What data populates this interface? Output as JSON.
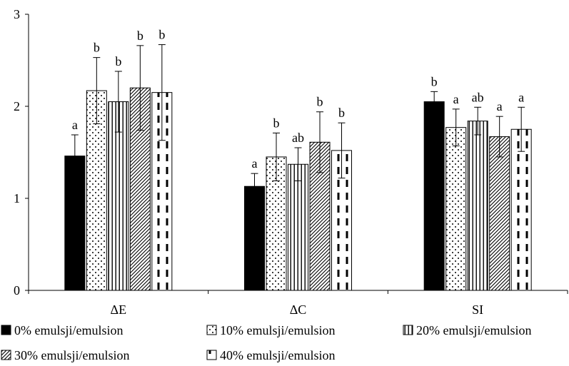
{
  "chart_data": {
    "type": "bar",
    "title": "",
    "xlabel": "",
    "ylabel": "",
    "ylim": [
      0,
      3
    ],
    "yticks": [
      0,
      1,
      2,
      3
    ],
    "grid": false,
    "legend_position": "bottom",
    "categories": [
      "ΔE",
      "ΔC",
      "SI"
    ],
    "series": [
      {
        "name": "0% emulsji/emulsion",
        "pattern": "solid",
        "values": [
          1.46,
          1.13,
          2.05
        ],
        "errors": [
          0.23,
          0.14,
          0.11
        ],
        "labels": [
          "a",
          "a",
          "b"
        ]
      },
      {
        "name": "10% emulsji/emulsion",
        "pattern": "dots",
        "values": [
          2.17,
          1.45,
          1.77
        ],
        "errors": [
          0.36,
          0.26,
          0.2
        ],
        "labels": [
          "b",
          "b",
          "a"
        ]
      },
      {
        "name": "20% emulsji/emulsion",
        "pattern": "vertical",
        "values": [
          2.05,
          1.37,
          1.84
        ],
        "errors": [
          0.33,
          0.18,
          0.15
        ],
        "labels": [
          "b",
          "ab",
          "ab"
        ]
      },
      {
        "name": "30% emulsji/emulsion",
        "pattern": "diagonal",
        "values": [
          2.2,
          1.61,
          1.67
        ],
        "errors": [
          0.46,
          0.33,
          0.22
        ],
        "labels": [
          "b",
          "b",
          "a"
        ]
      },
      {
        "name": "40% emulsji/emulsion",
        "pattern": "dashed-vertical",
        "values": [
          2.15,
          1.52,
          1.75
        ],
        "errors": [
          0.52,
          0.3,
          0.24
        ],
        "labels": [
          "b",
          "b",
          "a"
        ]
      }
    ]
  }
}
